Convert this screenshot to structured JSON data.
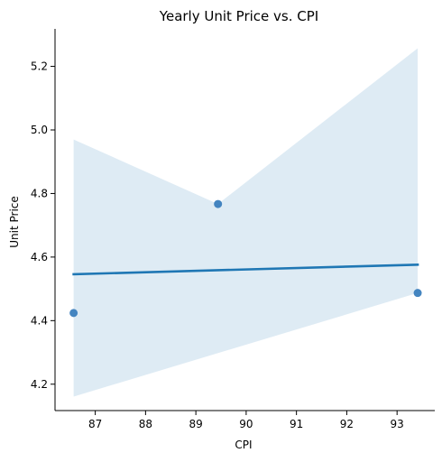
{
  "chart_data": {
    "type": "scatter",
    "title": "Yearly Unit Price vs. CPI",
    "xlabel": "CPI",
    "ylabel": "Unit Price",
    "xlim": [
      86.2,
      93.75
    ],
    "ylim": [
      4.117,
      5.318
    ],
    "x_ticks": [
      "87",
      "88",
      "89",
      "90",
      "91",
      "92",
      "93"
    ],
    "y_ticks": [
      "4.2",
      "4.4",
      "4.6",
      "4.8",
      "5.0",
      "5.2"
    ],
    "grid": false,
    "points": [
      {
        "x": 86.57,
        "y": 4.424
      },
      {
        "x": 89.44,
        "y": 4.767
      },
      {
        "x": 93.41,
        "y": 4.487
      }
    ],
    "regression_line": [
      {
        "x": 86.57,
        "y": 4.546
      },
      {
        "x": 93.41,
        "y": 4.576
      }
    ],
    "confidence_band": {
      "upper": [
        {
          "x": 86.57,
          "y": 4.97
        },
        {
          "x": 89.44,
          "y": 4.767
        },
        {
          "x": 93.41,
          "y": 5.257
        }
      ],
      "lower": [
        {
          "x": 86.57,
          "y": 4.161
        },
        {
          "x": 93.41,
          "y": 4.487
        }
      ]
    },
    "colors": {
      "point": "#3a7ebd",
      "line": "#1f77b4",
      "band": "#1f77b4"
    }
  }
}
